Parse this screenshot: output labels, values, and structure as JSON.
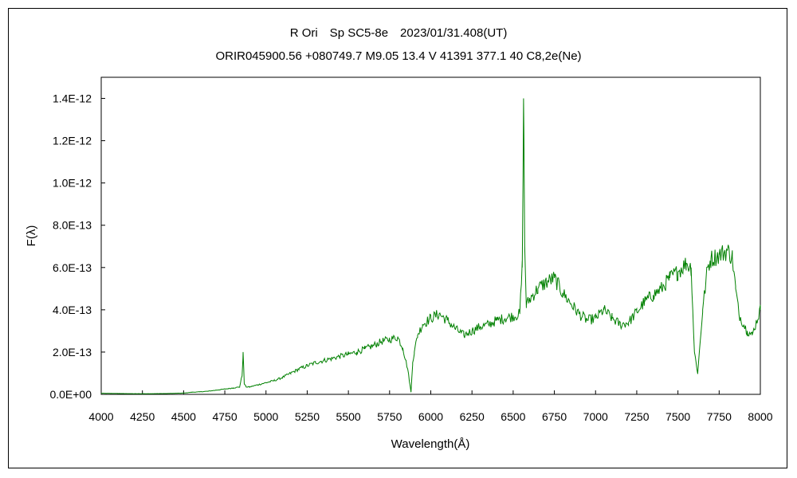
{
  "chart_data": {
    "type": "line",
    "title": "R Ori　Sp SC5-8e　2023/01/31.408(UT)",
    "subtitle": "ORIR045900.56 +080749.7 M9.05 13.4 V 41391 377.1 40 C8,2e(Ne)",
    "xlabel": "Wavelength(Å)",
    "ylabel": "F(λ)",
    "xlim": [
      4000,
      8000
    ],
    "ylim": [
      0,
      1.5e-12
    ],
    "x_ticks": [
      4000,
      4250,
      4500,
      4750,
      5000,
      5250,
      5500,
      5750,
      6000,
      6250,
      6500,
      6750,
      7000,
      7250,
      7500,
      7750,
      8000
    ],
    "y_ticks": [
      0,
      2e-13,
      4e-13,
      6e-13,
      8e-13,
      1e-12,
      1.2e-12,
      1.4e-12
    ],
    "y_tick_labels": [
      "0.0E+00",
      "2.0E-13",
      "4.0E-13",
      "6.0E-13",
      "8.0E-13",
      "1.0E-12",
      "1.2E-12",
      "1.4E-12"
    ],
    "grid": false,
    "legend": "none",
    "line_color": "#008000",
    "series": [
      {
        "x": [
          4000,
          4100,
          4200,
          4300,
          4400,
          4500,
          4550,
          4600,
          4650,
          4700,
          4750,
          4800,
          4840,
          4855,
          4861,
          4868,
          4880,
          4900,
          4950,
          5000,
          5050,
          5100,
          5150,
          5200,
          5250,
          5300,
          5350,
          5400,
          5450,
          5500,
          5550,
          5600,
          5650,
          5700,
          5750,
          5800,
          5830,
          5860,
          5880,
          5890,
          5900,
          5920,
          5950,
          6000,
          6050,
          6100,
          6150,
          6200,
          6250,
          6300,
          6350,
          6400,
          6450,
          6500,
          6540,
          6555,
          6563,
          6570,
          6580,
          6600,
          6650,
          6700,
          6750,
          6800,
          6850,
          6900,
          6950,
          7000,
          7050,
          7100,
          7150,
          7200,
          7250,
          7300,
          7350,
          7400,
          7450,
          7500,
          7550,
          7580,
          7600,
          7620,
          7650,
          7680,
          7700,
          7750,
          7800,
          7830,
          7850,
          7870,
          7900,
          7920,
          7950,
          8000
        ],
        "y": [
          5e-15,
          4e-15,
          3e-15,
          3e-15,
          4e-15,
          6e-15,
          1e-14,
          1.2e-14,
          1.5e-14,
          2e-14,
          2.5e-14,
          3e-14,
          3.5e-14,
          9e-14,
          2e-13,
          5e-14,
          3.5e-14,
          3.5e-14,
          4.5e-14,
          5.5e-14,
          6.5e-14,
          8e-14,
          1e-13,
          1.2e-13,
          1.35e-13,
          1.5e-13,
          1.6e-13,
          1.7e-13,
          1.8e-13,
          1.9e-13,
          2e-13,
          2.15e-13,
          2.3e-13,
          2.5e-13,
          2.6e-13,
          2.7e-13,
          2.2e-13,
          1.2e-13,
          1e-14,
          1.5e-13,
          2e-13,
          2.8e-13,
          3.3e-13,
          3.6e-13,
          3.8e-13,
          3.5e-13,
          3.1e-13,
          2.8e-13,
          3e-13,
          3.2e-13,
          3.3e-13,
          3.5e-13,
          3.6e-13,
          3.7e-13,
          3.8e-13,
          6e-13,
          1.4e-12,
          7e-13,
          4.2e-13,
          4.5e-13,
          5e-13,
          5.3e-13,
          5.5e-13,
          4.8e-13,
          4.3e-13,
          3.8e-13,
          3.5e-13,
          3.6e-13,
          4e-13,
          3.6e-13,
          3.3e-13,
          3.4e-13,
          3.9e-13,
          4.4e-13,
          4.7e-13,
          5e-13,
          5.5e-13,
          5.8e-13,
          6.2e-13,
          6e-13,
          2e-13,
          1e-13,
          4e-13,
          6e-13,
          6.4e-13,
          6.6e-13,
          6.8e-13,
          6.5e-13,
          5e-13,
          3.8e-13,
          3.3e-13,
          3e-13,
          2.8e-13,
          4e-13
        ]
      }
    ]
  }
}
